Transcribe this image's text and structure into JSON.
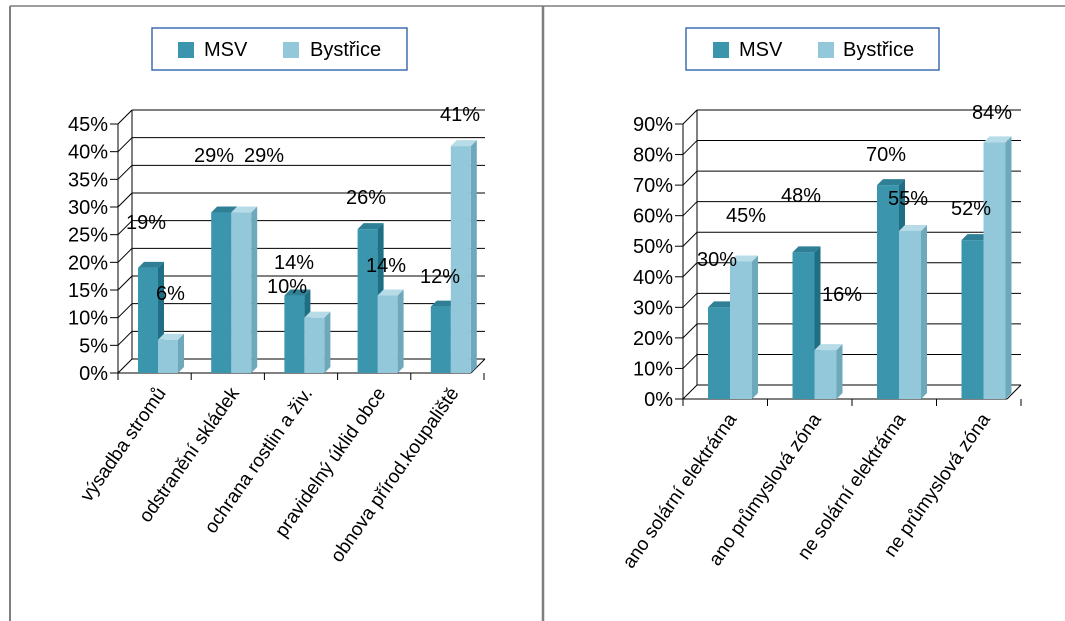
{
  "colors": {
    "msv": "#3a95ad",
    "msv_dark": "#1f6f84",
    "msv_top": "#2f8096",
    "bystrice": "#93c8da",
    "bystrice_dark": "#6ea8bb",
    "bystrice_top": "#b7dce8",
    "grid": "#000000",
    "legend_border": "#3f6fb0",
    "panel_border": "#7f7f7f"
  },
  "chart_data": [
    {
      "type": "bar",
      "legend": [
        "MSV",
        "Bystřice"
      ],
      "legend_position": "top",
      "grid": true,
      "categories": [
        "výsadba stromů",
        "odstranění skládek",
        "ochrana rostlin a živ.",
        "pravidelný úklid obce",
        "obnova přírod.koupaliště"
      ],
      "series": [
        {
          "name": "MSV",
          "values": [
            19,
            29,
            14,
            26,
            12
          ]
        },
        {
          "name": "Bystřice",
          "values": [
            6,
            29,
            10,
            14,
            41
          ]
        }
      ],
      "data_labels": {
        "MSV": [
          "19%",
          "29%",
          "14%",
          "26%",
          "12%"
        ],
        "Bystřice": [
          "6%",
          "29%",
          "10%",
          "14%",
          "41%"
        ]
      },
      "ylim": [
        0,
        45
      ],
      "yticks": [
        "0%",
        "5%",
        "10%",
        "15%",
        "20%",
        "25%",
        "30%",
        "35%",
        "40%",
        "45%"
      ]
    },
    {
      "type": "bar",
      "legend": [
        "MSV",
        "Bystřice"
      ],
      "legend_position": "top",
      "grid": true,
      "categories": [
        "ano solární elektrárna",
        "ano průmyslová zóna",
        "ne solární elektrárna",
        "ne průmyslová zóna"
      ],
      "series": [
        {
          "name": "MSV",
          "values": [
            30,
            48,
            70,
            52
          ]
        },
        {
          "name": "Bystřice",
          "values": [
            45,
            16,
            55,
            84
          ]
        }
      ],
      "data_labels": {
        "MSV": [
          "30%",
          "48%",
          "70%",
          "52%"
        ],
        "Bystřice": [
          "45%",
          "16%",
          "55%",
          "84%"
        ]
      },
      "ylim": [
        0,
        90
      ],
      "yticks": [
        "0%",
        "10%",
        "20%",
        "30%",
        "40%",
        "50%",
        "60%",
        "70%",
        "80%",
        "90%"
      ]
    }
  ]
}
